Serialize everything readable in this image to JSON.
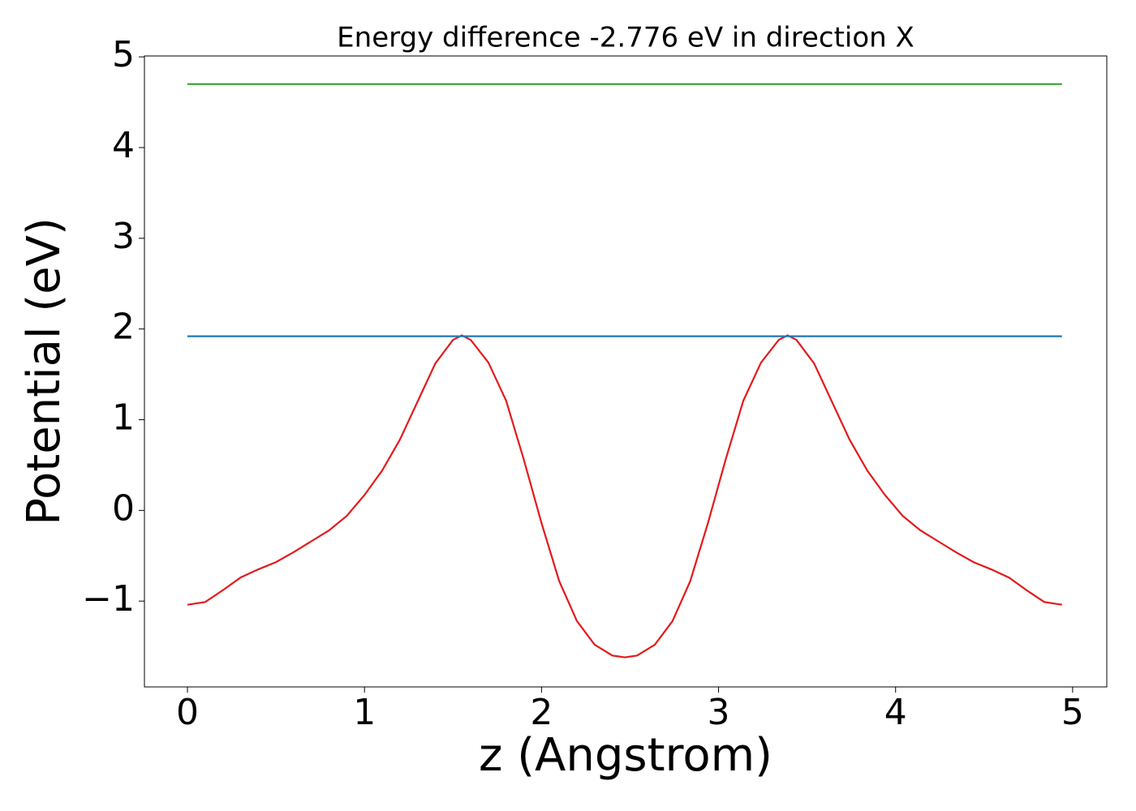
{
  "chart_data": {
    "type": "line",
    "title": "Energy difference -2.776 eV in direction X",
    "xlabel": "z (Angstrom)",
    "ylabel": "Potential (eV)",
    "xlim": [
      -0.243,
      5.193
    ],
    "ylim": [
      -1.946,
      5.01
    ],
    "xticks": [
      0,
      1,
      2,
      3,
      4,
      5
    ],
    "yticks": [
      {
        "value": -1,
        "label": "−1"
      },
      0,
      1,
      2,
      3,
      4,
      5
    ],
    "series": [
      {
        "color": "#e31a1c",
        "x": [
          0,
          0.1,
          0.2,
          0.3,
          0.4,
          0.5,
          0.6,
          0.7,
          0.8,
          0.9,
          1.0,
          1.1,
          1.2,
          1.3,
          1.4,
          1.5,
          1.55,
          1.6,
          1.7,
          1.8,
          1.9,
          2.0,
          2.1,
          2.2,
          2.3,
          2.4,
          2.47,
          2.54,
          2.64,
          2.74,
          2.84,
          2.94,
          3.04,
          3.14,
          3.24,
          3.34,
          3.39,
          3.44,
          3.54,
          3.64,
          3.74,
          3.84,
          3.94,
          4.04,
          4.14,
          4.24,
          4.34,
          4.44,
          4.54,
          4.64,
          4.74,
          4.84,
          4.94
        ],
        "values": [
          -1.04,
          -1.01,
          -0.88,
          -0.74,
          -0.65,
          -0.57,
          -0.46,
          -0.34,
          -0.22,
          -0.06,
          0.17,
          0.44,
          0.78,
          1.2,
          1.62,
          1.88,
          1.93,
          1.88,
          1.63,
          1.21,
          0.56,
          -0.14,
          -0.78,
          -1.22,
          -1.48,
          -1.6,
          -1.62,
          -1.6,
          -1.48,
          -1.22,
          -0.78,
          -0.14,
          0.56,
          1.21,
          1.63,
          1.88,
          1.93,
          1.88,
          1.62,
          1.2,
          0.78,
          0.44,
          0.17,
          -0.06,
          -0.22,
          -0.34,
          -0.46,
          -0.57,
          -0.65,
          -0.74,
          -0.88,
          -1.01,
          -1.04
        ]
      },
      {
        "color": "#1f78b4",
        "x": [
          0,
          4.94
        ],
        "values": [
          1.92,
          1.92
        ]
      },
      {
        "color": "#33a02c",
        "x": [
          0,
          4.94
        ],
        "values": [
          4.7,
          4.7
        ]
      }
    ]
  }
}
